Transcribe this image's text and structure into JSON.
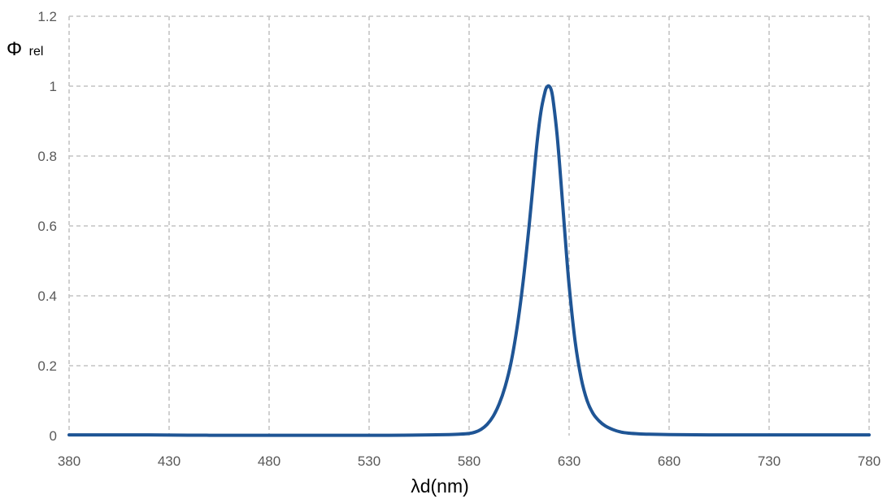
{
  "chart_data": {
    "type": "line",
    "title": "",
    "ylabel_main": "Φ",
    "ylabel_sub": "rel",
    "xlabel": "λd(nm)",
    "xlim": [
      380,
      780
    ],
    "ylim": [
      0,
      1.2
    ],
    "x_ticks": [
      380,
      430,
      480,
      530,
      580,
      630,
      680,
      730,
      780
    ],
    "y_ticks": [
      0,
      0.2,
      0.4,
      0.6,
      0.8,
      1,
      1.2
    ],
    "grid": true,
    "legend": "none",
    "series_color": "#1f5595",
    "series": [
      {
        "x": [
          380,
          385,
          390,
          400,
          420,
          450,
          480,
          500,
          520,
          540,
          560,
          570,
          575,
          580,
          583,
          586,
          589,
          592,
          595,
          598,
          601,
          604,
          607,
          610,
          612,
          614,
          616,
          618,
          619,
          620,
          621,
          622,
          624,
          626,
          628,
          630,
          633,
          636,
          639,
          642,
          645,
          648,
          652,
          656,
          660,
          665,
          670,
          680,
          700,
          730,
          760,
          780
        ],
        "y": [
          0.002,
          0.002,
          0.002,
          0.002,
          0.002,
          0.001,
          0.001,
          0.001,
          0.001,
          0.001,
          0.002,
          0.003,
          0.004,
          0.006,
          0.01,
          0.018,
          0.032,
          0.055,
          0.09,
          0.14,
          0.21,
          0.31,
          0.44,
          0.6,
          0.72,
          0.84,
          0.93,
          0.985,
          0.998,
          1.0,
          0.99,
          0.96,
          0.86,
          0.72,
          0.57,
          0.43,
          0.27,
          0.165,
          0.1,
          0.063,
          0.042,
          0.028,
          0.017,
          0.01,
          0.007,
          0.005,
          0.004,
          0.003,
          0.002,
          0.002,
          0.002,
          0.002
        ]
      }
    ]
  }
}
